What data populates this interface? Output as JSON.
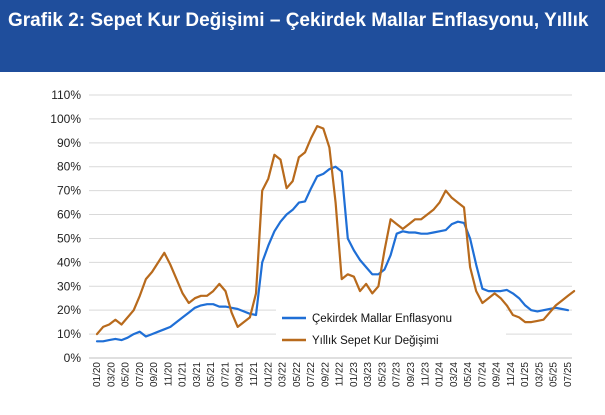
{
  "header": {
    "prefix": "Grafik 2:",
    "title": "Sepet Kur Değişimi – Çekirdek Mallar Enflasyonu, Yıllık"
  },
  "chart_data": {
    "type": "line",
    "title": "Sepet Kur Değişimi – Çekirdek Mallar Enflasyonu, Yıllık",
    "xlabel": "",
    "ylabel": "",
    "ylim": [
      0,
      110
    ],
    "y_ticks": [
      "0%",
      "10%",
      "20%",
      "30%",
      "40%",
      "50%",
      "60%",
      "70%",
      "80%",
      "90%",
      "100%",
      "110%"
    ],
    "x_ticks": [
      "01/20",
      "03/20",
      "05/20",
      "07/20",
      "09/20",
      "11/20",
      "01/21",
      "03/21",
      "05/21",
      "07/21",
      "09/21",
      "11/21",
      "01/22",
      "03/22",
      "05/22",
      "07/22",
      "09/22",
      "11/22",
      "01/23",
      "03/23",
      "05/23",
      "07/23",
      "09/23",
      "11/23",
      "01/24",
      "03/24",
      "05/24",
      "07/24",
      "09/24",
      "11/24",
      "01/25",
      "03/25",
      "05/25",
      "07/25"
    ],
    "grid": "horizontal",
    "legend_position": "bottom-right",
    "series": [
      {
        "name": "Çekirdek Mallar Enflasyonu",
        "color": "#1f6fd6",
        "values": [
          7,
          7,
          7.5,
          8,
          7.5,
          8.5,
          10,
          11,
          9,
          10,
          11,
          12,
          13,
          15,
          17,
          19,
          21,
          22,
          22.5,
          22.5,
          21.5,
          21.5,
          21,
          20.5,
          19.5,
          18.5,
          18,
          40,
          47,
          53,
          57,
          60,
          62,
          65,
          65.5,
          71,
          76,
          77,
          79,
          80,
          78,
          50,
          45,
          41,
          38,
          35,
          35,
          37,
          43,
          52,
          53,
          52.5,
          52.5,
          52,
          52,
          52.5,
          53,
          53.5,
          56,
          57,
          56.5,
          50,
          39,
          29,
          28,
          28,
          28,
          28.5,
          27,
          25,
          22,
          20,
          19.5,
          20,
          20.5,
          21,
          20.5,
          20
        ]
      },
      {
        "name": "Yıllık Sepet Kur Değişimi",
        "color": "#b86a1c",
        "values": [
          10,
          13,
          14,
          16,
          14,
          17,
          20,
          26,
          33,
          36,
          40,
          44,
          39,
          33,
          27,
          23,
          25,
          26,
          26,
          28,
          31,
          28,
          19,
          13,
          15,
          17,
          27,
          70,
          75,
          85,
          83,
          71,
          74,
          84,
          86,
          92,
          97,
          96,
          88,
          65,
          33,
          35,
          34,
          28,
          31,
          27,
          30,
          45,
          58,
          56,
          54,
          56,
          58,
          58,
          60,
          62,
          65,
          70,
          67,
          65,
          63,
          38,
          28,
          23,
          25,
          27,
          25,
          22,
          18,
          17,
          15,
          15,
          15.5,
          16,
          19,
          22,
          24,
          26,
          28
        ]
      }
    ]
  }
}
